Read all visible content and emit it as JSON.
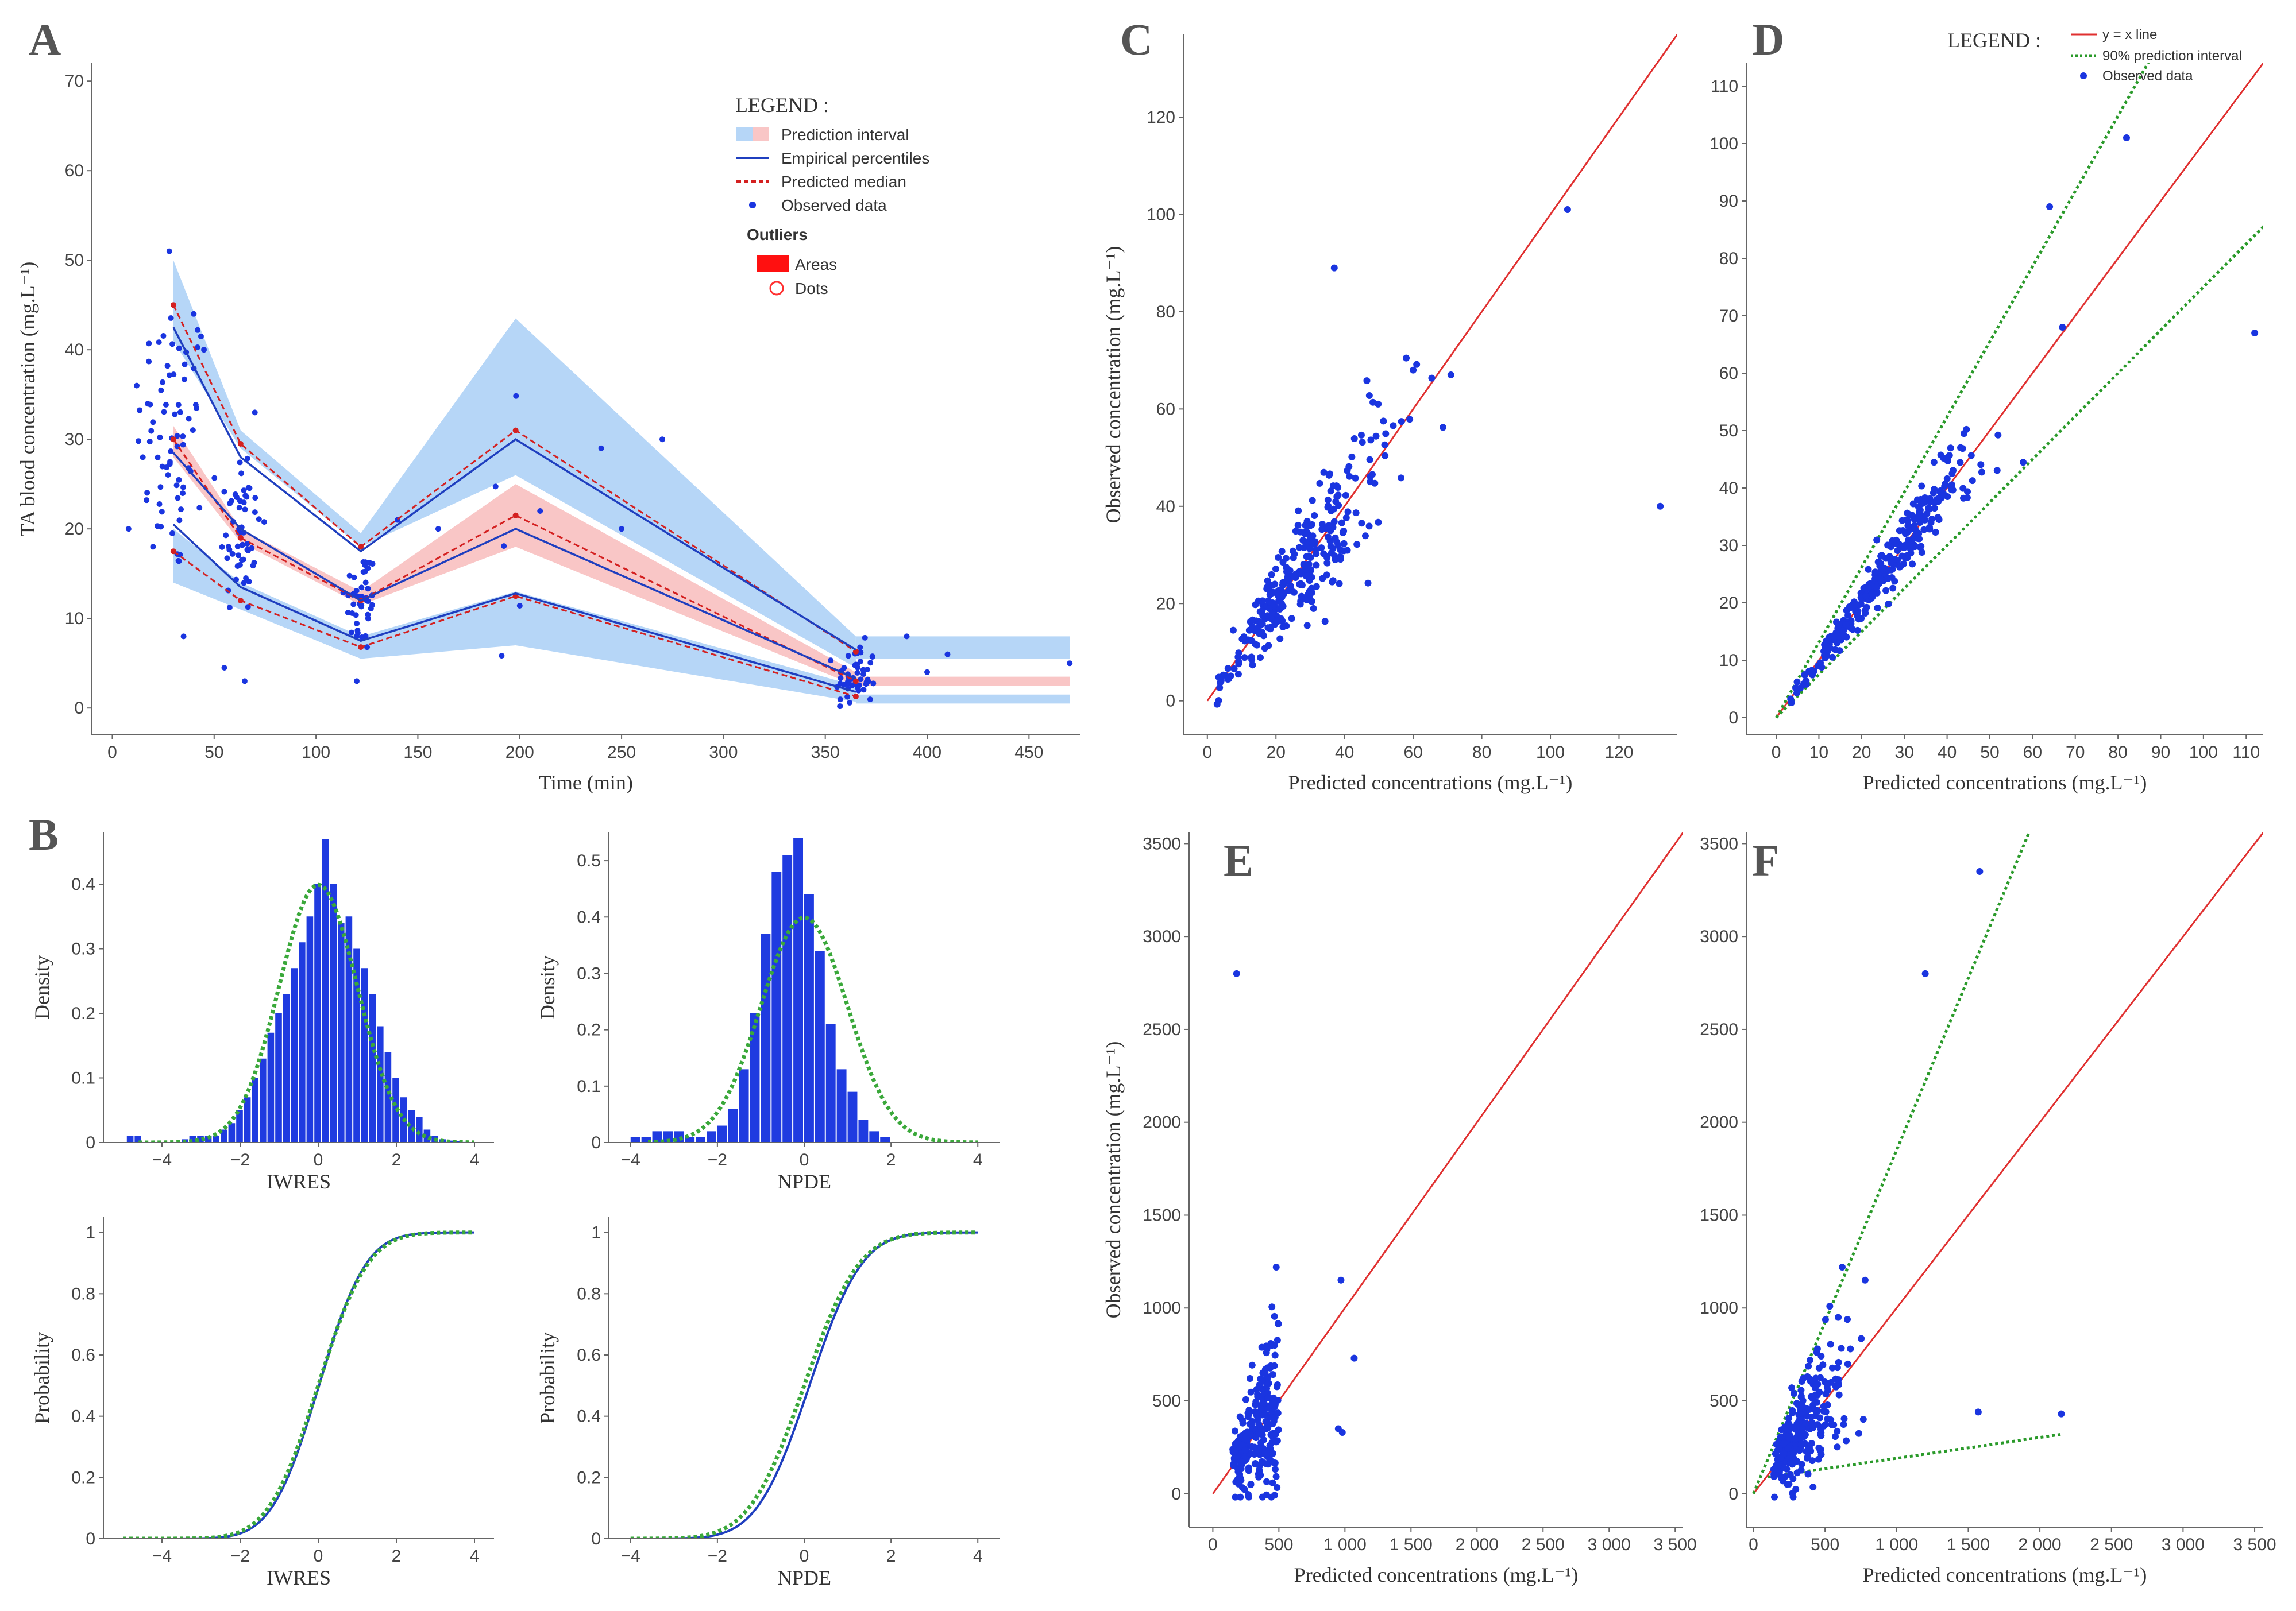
{
  "panel_labels": [
    "A",
    "B",
    "C",
    "D",
    "E",
    "F"
  ],
  "colors": {
    "pi_blue": "#b6d6f7",
    "pi_pink": "#f9c6c6",
    "percentile": "#1f3fbf",
    "median": "#d42020",
    "observed": "#1a35e0",
    "identity": "#e03030",
    "interval": "#2a9a2a",
    "hist": "#1f3be0",
    "density": "#3aa83a"
  },
  "chart_data": [
    {
      "id": "A",
      "type": "line",
      "xlabel": "Time (min)",
      "ylabel": "TA blood concentration (mg.L⁻¹)",
      "xlim": [
        -10,
        475
      ],
      "ylim": [
        -3,
        72
      ],
      "xticks": [
        0,
        50,
        100,
        150,
        200,
        250,
        300,
        350,
        400,
        450
      ],
      "yticks": [
        0,
        10,
        20,
        30,
        40,
        50,
        60,
        70
      ],
      "legend": {
        "title": "LEGEND :",
        "items": [
          "Prediction interval",
          "Empirical percentiles",
          "Predicted median",
          "Observed data"
        ],
        "outliers_title": "Outliers",
        "outlier_items": [
          "Areas",
          "Dots"
        ]
      },
      "times": [
        30,
        63,
        122,
        198,
        365
      ],
      "pi_upper": {
        "lo": [
          41,
          29,
          18,
          26,
          4.5
        ],
        "hi": [
          50,
          31,
          19.5,
          43.5,
          8
        ]
      },
      "pi_middle": {
        "lo": [
          28,
          18.5,
          11.5,
          18,
          2.5
        ],
        "hi": [
          31.5,
          20,
          13,
          25,
          4
        ]
      },
      "pi_lower": {
        "lo": [
          14,
          11,
          5.5,
          7,
          0.7
        ],
        "hi": [
          20,
          14,
          8,
          13,
          2.5
        ]
      },
      "pi_tail": {
        "x": [
          365,
          470
        ],
        "blue_bands": [
          [
            5.5,
            8
          ],
          [
            0.5,
            1.5
          ]
        ],
        "pink_band": [
          2.5,
          3.5
        ]
      },
      "empirical_percentiles": {
        "p95": [
          42.5,
          28,
          17.5,
          30,
          6.5
        ],
        "p50": [
          28.5,
          20,
          12,
          20,
          3.3
        ],
        "p5": [
          20.5,
          13.5,
          7.5,
          12.8,
          1.8
        ]
      },
      "predicted_median": {
        "p95": [
          45,
          29.5,
          18,
          31,
          6.3
        ],
        "p50": [
          30,
          19,
          12,
          21.5,
          3
        ],
        "p5": [
          17.5,
          12,
          6.8,
          12.5,
          1.3
        ]
      }
    },
    {
      "id": "B1",
      "type": "bar",
      "xlabel": "IWRES",
      "ylabel": "Density",
      "xlim": [
        -5.5,
        4.5
      ],
      "ylim": [
        0,
        0.48
      ],
      "xticks": [
        -4,
        -2,
        0,
        2,
        4
      ],
      "yticks": [
        0,
        0.1,
        0.2,
        0.3,
        0.4
      ],
      "bins_start": -4.9,
      "bin_width": 0.2,
      "values": [
        0.01,
        0.01,
        0,
        0,
        0,
        0,
        0,
        0.005,
        0.01,
        0.01,
        0.01,
        0.01,
        0.02,
        0.03,
        0.05,
        0.07,
        0.1,
        0.13,
        0.17,
        0.2,
        0.23,
        0.27,
        0.31,
        0.35,
        0.4,
        0.47,
        0.4,
        0.34,
        0.35,
        0.3,
        0.27,
        0.23,
        0.18,
        0.14,
        0.1,
        0.07,
        0.05,
        0.04,
        0.02,
        0.01,
        0.005,
        0.003,
        0.002,
        0.001
      ]
    },
    {
      "id": "B2",
      "type": "bar",
      "xlabel": "NPDE",
      "ylabel": "Density",
      "xlim": [
        -4.5,
        4.5
      ],
      "ylim": [
        0,
        0.55
      ],
      "xticks": [
        -4,
        -2,
        0,
        2,
        4
      ],
      "yticks": [
        0,
        0.1,
        0.2,
        0.3,
        0.4,
        0.5
      ],
      "bins_start": -4.0,
      "bin_width": 0.25,
      "values": [
        0.01,
        0.01,
        0.02,
        0.02,
        0.02,
        0.01,
        0.01,
        0.02,
        0.03,
        0.06,
        0.13,
        0.23,
        0.37,
        0.48,
        0.51,
        0.54,
        0.44,
        0.34,
        0.21,
        0.13,
        0.09,
        0.04,
        0.02,
        0.01
      ]
    },
    {
      "id": "B3",
      "type": "line",
      "xlabel": "IWRES",
      "ylabel": "Probability",
      "xlim": [
        -5.5,
        4.5
      ],
      "ylim": [
        0,
        1.05
      ],
      "xticks": [
        -4,
        -2,
        0,
        2,
        4
      ],
      "yticks": [
        0,
        0.2,
        0.4,
        0.6,
        0.8,
        1
      ]
    },
    {
      "id": "B4",
      "type": "line",
      "xlabel": "NPDE",
      "ylabel": "Probability",
      "xlim": [
        -4.5,
        4.5
      ],
      "ylim": [
        0,
        1.05
      ],
      "xticks": [
        -4,
        -2,
        0,
        2,
        4
      ],
      "yticks": [
        0,
        0.2,
        0.4,
        0.6,
        0.8,
        1
      ]
    },
    {
      "id": "C",
      "type": "scatter",
      "xlabel": "Predicted concentrations (mg.L⁻¹)",
      "ylabel": "Observed concentration (mg.L⁻¹)",
      "xlim": [
        -7,
        137
      ],
      "ylim": [
        -7,
        137
      ],
      "xticks": [
        0,
        20,
        40,
        60,
        80,
        100,
        120
      ],
      "yticks": [
        0,
        20,
        40,
        60,
        80,
        100,
        120
      ],
      "outliers": [
        [
          105,
          101
        ],
        [
          37,
          89
        ],
        [
          132,
          40
        ],
        [
          60,
          68
        ],
        [
          71,
          67
        ]
      ]
    },
    {
      "id": "D",
      "type": "scatter",
      "xlabel": "Predicted concentrations (mg.L⁻¹)",
      "ylabel": "",
      "xlim": [
        -7,
        114
      ],
      "ylim": [
        -3,
        114
      ],
      "xticks": [
        0,
        10,
        20,
        30,
        40,
        50,
        60,
        70,
        80,
        90,
        100,
        110
      ],
      "yticks": [
        0,
        10,
        20,
        30,
        40,
        50,
        60,
        70,
        80,
        90,
        100,
        110
      ],
      "legend": {
        "title": "LEGEND :",
        "items": [
          "y = x line",
          "90% prediction interval",
          "Observed data"
        ]
      },
      "interval_slopes": [
        1.31,
        0.75
      ],
      "outliers": [
        [
          82,
          101
        ],
        [
          64,
          89
        ],
        [
          112,
          67
        ],
        [
          67,
          68
        ]
      ]
    },
    {
      "id": "E",
      "type": "scatter",
      "xlabel": "Predicted concentrations (mg.L⁻¹)",
      "ylabel": "Observed concentration (mg.L⁻¹)",
      "xlim": [
        -180,
        3560
      ],
      "ylim": [
        -180,
        3560
      ],
      "xticks": [
        0,
        500,
        1000,
        1500,
        2000,
        2500,
        3000,
        3500
      ],
      "xtick_labels": [
        "0",
        "500",
        "1 000",
        "1 500",
        "2 000",
        "2 500",
        "3 000",
        "3 500"
      ],
      "yticks": [
        0,
        500,
        1000,
        1500,
        2000,
        2500,
        3000,
        3500
      ],
      "outliers": [
        [
          180,
          2800
        ],
        [
          970,
          1150
        ],
        [
          1070,
          730
        ],
        [
          950,
          350
        ],
        [
          980,
          330
        ],
        [
          480,
          1220
        ]
      ]
    },
    {
      "id": "F",
      "type": "scatter",
      "xlabel": "Predicted concentrations (mg.L⁻¹)",
      "ylabel": "",
      "xlim": [
        -50,
        3560
      ],
      "ylim": [
        -180,
        3560
      ],
      "xticks": [
        0,
        500,
        1000,
        1500,
        2000,
        2500,
        3000,
        3500
      ],
      "xtick_labels": [
        "0",
        "500",
        "1 000",
        "1 500",
        "2 000",
        "2 500",
        "3 000",
        "3 500"
      ],
      "yticks": [
        0,
        500,
        1000,
        1500,
        2000,
        2500,
        3000,
        3500
      ],
      "interval_upper_slope": 1.85,
      "interval_lower": [
        [
          100,
          90
        ],
        [
          2150,
          320
        ]
      ],
      "outliers": [
        [
          1580,
          3350
        ],
        [
          1200,
          2800
        ],
        [
          1570,
          440
        ],
        [
          2150,
          430
        ],
        [
          780,
          1150
        ],
        [
          620,
          1220
        ]
      ]
    }
  ]
}
